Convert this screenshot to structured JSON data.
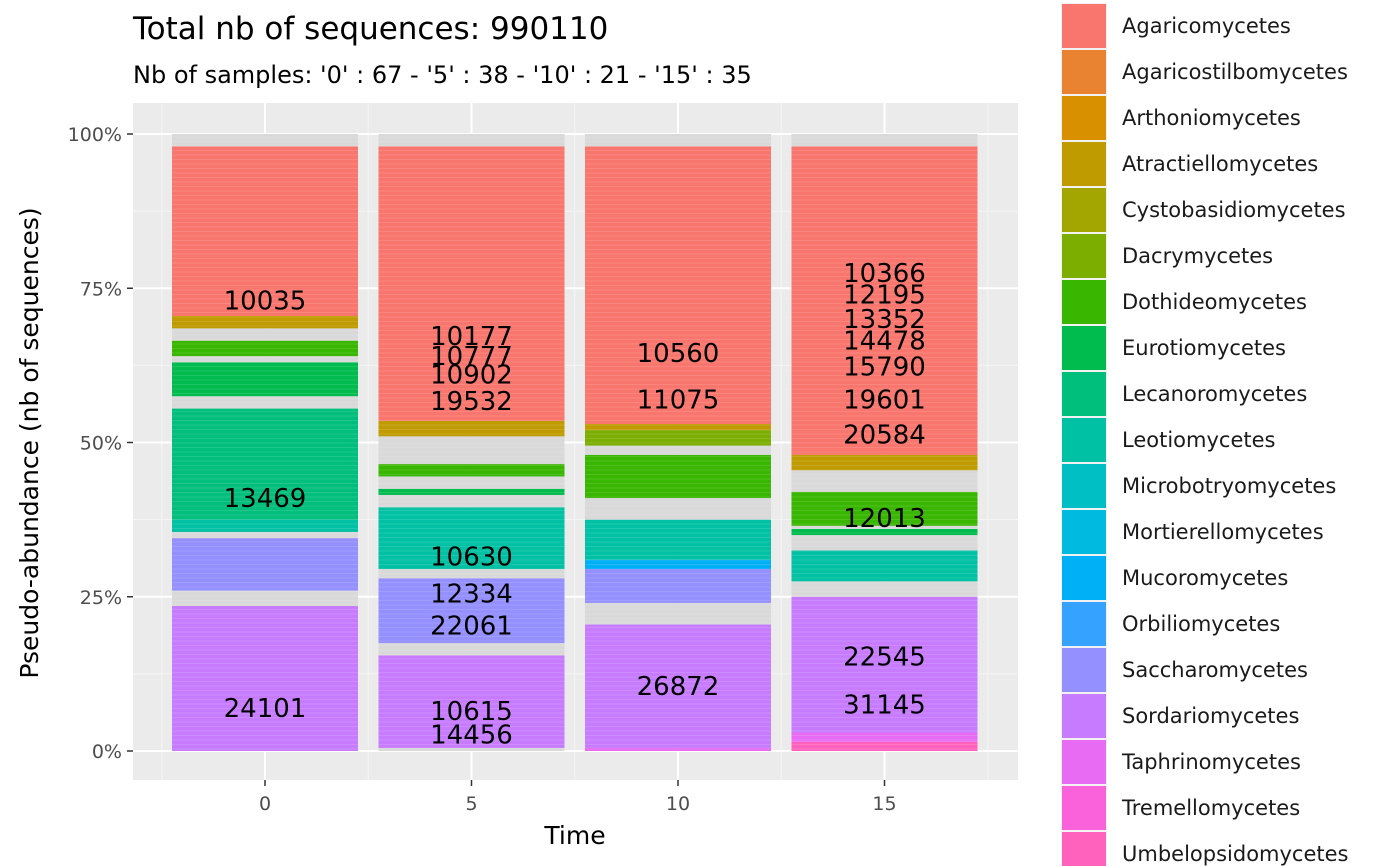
{
  "chart_data": {
    "type": "bar",
    "stacked": true,
    "title": "Total nb of sequences:  990110",
    "subtitle": "Nb of samples: '0' : 67 - '5' : 38 - '10' : 21 - '15' : 35",
    "xlabel": "Time",
    "ylabel": "Pseudo-abundance (nb of sequences)",
    "categories": [
      "0",
      "5",
      "10",
      "15"
    ],
    "ylim": [
      0,
      1
    ],
    "yticks": [
      "0%",
      "25%",
      "50%",
      "75%",
      "100%"
    ],
    "grid": true,
    "legend_position": "right",
    "colors": {
      "Agaricomycetes": "#F8766D",
      "Agaricostilbomycetes": "#EA8331",
      "Arthoniomycetes": "#D89000",
      "Atractiellomycetes": "#C09B00",
      "Cystobasidiomycetes": "#A3A500",
      "Dacrymycetes": "#7CAE00",
      "Dothideomycetes": "#39B600",
      "Eurotiomycetes": "#00BB4E",
      "Lecanoromycetes": "#00BF7D",
      "Leotiomycetes": "#00C1A3",
      "Microbotryomycetes": "#00BFC4",
      "Mortierellomycetes": "#00BAE0",
      "Mucoromycetes": "#00B0F6",
      "Orbiliomycetes": "#35A2FF",
      "Saccharomycetes": "#9590FF",
      "Sordariomycetes": "#C77CFF",
      "Taphrinomycetes": "#E76BF3",
      "Tremellomycetes": "#FA62DB",
      "Umbelopsidomycetes": "#FF62BC",
      "other": "#d9d9d9"
    },
    "legend": [
      "Agaricomycetes",
      "Agaricostilbomycetes",
      "Arthoniomycetes",
      "Atractiellomycetes",
      "Cystobasidiomycetes",
      "Dacrymycetes",
      "Dothideomycetes",
      "Eurotiomycetes",
      "Lecanoromycetes",
      "Leotiomycetes",
      "Microbotryomycetes",
      "Mortierellomycetes",
      "Mucoromycetes",
      "Orbiliomycetes",
      "Saccharomycetes",
      "Sordariomycetes",
      "Taphrinomycetes",
      "Tremellomycetes",
      "Umbelopsidomycetes"
    ],
    "stacks": [
      {
        "time": "0",
        "segments": [
          {
            "taxon": "Sordariomycetes",
            "from": 0.0,
            "to": 0.235
          },
          {
            "taxon": "other",
            "from": 0.235,
            "to": 0.26
          },
          {
            "taxon": "Saccharomycetes",
            "from": 0.26,
            "to": 0.345
          },
          {
            "taxon": "other",
            "from": 0.345,
            "to": 0.355
          },
          {
            "taxon": "Leotiomycetes",
            "from": 0.355,
            "to": 0.375
          },
          {
            "taxon": "Lecanoromycetes",
            "from": 0.375,
            "to": 0.555
          },
          {
            "taxon": "other",
            "from": 0.555,
            "to": 0.575
          },
          {
            "taxon": "Eurotiomycetes",
            "from": 0.575,
            "to": 0.63
          },
          {
            "taxon": "other",
            "from": 0.63,
            "to": 0.64
          },
          {
            "taxon": "Dothideomycetes",
            "from": 0.64,
            "to": 0.665
          },
          {
            "taxon": "other",
            "from": 0.665,
            "to": 0.685
          },
          {
            "taxon": "Atractiellomycetes",
            "from": 0.685,
            "to": 0.705
          },
          {
            "taxon": "Agaricomycetes",
            "from": 0.705,
            "to": 0.98
          },
          {
            "taxon": "other",
            "from": 0.98,
            "to": 1.0
          }
        ],
        "labels": [
          {
            "text": "24101",
            "y": 0.07
          },
          {
            "text": "13469",
            "y": 0.41
          },
          {
            "text": "10035",
            "y": 0.73
          }
        ]
      },
      {
        "time": "5",
        "segments": [
          {
            "taxon": "other",
            "from": 0.0,
            "to": 0.005
          },
          {
            "taxon": "Sordariomycetes",
            "from": 0.005,
            "to": 0.155
          },
          {
            "taxon": "other",
            "from": 0.155,
            "to": 0.175
          },
          {
            "taxon": "Saccharomycetes",
            "from": 0.175,
            "to": 0.28
          },
          {
            "taxon": "other",
            "from": 0.28,
            "to": 0.295
          },
          {
            "taxon": "Leotiomycetes",
            "from": 0.295,
            "to": 0.395
          },
          {
            "taxon": "other",
            "from": 0.395,
            "to": 0.415
          },
          {
            "taxon": "Eurotiomycetes",
            "from": 0.415,
            "to": 0.425
          },
          {
            "taxon": "other",
            "from": 0.425,
            "to": 0.445
          },
          {
            "taxon": "Dothideomycetes",
            "from": 0.445,
            "to": 0.465
          },
          {
            "taxon": "other",
            "from": 0.465,
            "to": 0.51
          },
          {
            "taxon": "Atractiellomycetes",
            "from": 0.51,
            "to": 0.535
          },
          {
            "taxon": "Agaricomycetes",
            "from": 0.535,
            "to": 0.98
          },
          {
            "taxon": "other",
            "from": 0.98,
            "to": 1.0
          }
        ],
        "labels": [
          {
            "text": "14456",
            "y": 0.027
          },
          {
            "text": "10615",
            "y": 0.065
          },
          {
            "text": "22061",
            "y": 0.203
          },
          {
            "text": "12334",
            "y": 0.255
          },
          {
            "text": "10630",
            "y": 0.315
          },
          {
            "text": "19532",
            "y": 0.567
          },
          {
            "text": "10902",
            "y": 0.61
          },
          {
            "text": "10777",
            "y": 0.64
          },
          {
            "text": "10177",
            "y": 0.673
          }
        ]
      },
      {
        "time": "10",
        "segments": [
          {
            "taxon": "Taphrinomycetes",
            "from": 0.0,
            "to": 0.005
          },
          {
            "taxon": "Sordariomycetes",
            "from": 0.005,
            "to": 0.205
          },
          {
            "taxon": "other",
            "from": 0.205,
            "to": 0.24
          },
          {
            "taxon": "Saccharomycetes",
            "from": 0.24,
            "to": 0.295
          },
          {
            "taxon": "Mucoromycetes",
            "from": 0.295,
            "to": 0.31
          },
          {
            "taxon": "Leotiomycetes",
            "from": 0.31,
            "to": 0.375
          },
          {
            "taxon": "other",
            "from": 0.375,
            "to": 0.41
          },
          {
            "taxon": "Dothideomycetes",
            "from": 0.41,
            "to": 0.48
          },
          {
            "taxon": "other",
            "from": 0.48,
            "to": 0.495
          },
          {
            "taxon": "Dacrymycetes",
            "from": 0.495,
            "to": 0.52
          },
          {
            "taxon": "Atractiellomycetes",
            "from": 0.52,
            "to": 0.53
          },
          {
            "taxon": "Agaricomycetes",
            "from": 0.53,
            "to": 0.98
          },
          {
            "taxon": "other",
            "from": 0.98,
            "to": 1.0
          }
        ],
        "labels": [
          {
            "text": "26872",
            "y": 0.105
          },
          {
            "text": "11075",
            "y": 0.57
          },
          {
            "text": "10560",
            "y": 0.645
          }
        ]
      },
      {
        "time": "15",
        "segments": [
          {
            "taxon": "Umbelopsidomycetes",
            "from": 0.0,
            "to": 0.015
          },
          {
            "taxon": "Taphrinomycetes",
            "from": 0.015,
            "to": 0.03
          },
          {
            "taxon": "Sordariomycetes",
            "from": 0.03,
            "to": 0.25
          },
          {
            "taxon": "other",
            "from": 0.25,
            "to": 0.275
          },
          {
            "taxon": "Leotiomycetes",
            "from": 0.275,
            "to": 0.325
          },
          {
            "taxon": "other",
            "from": 0.325,
            "to": 0.35
          },
          {
            "taxon": "Eurotiomycetes",
            "from": 0.35,
            "to": 0.36
          },
          {
            "taxon": "other",
            "from": 0.36,
            "to": 0.365
          },
          {
            "taxon": "Dothideomycetes",
            "from": 0.365,
            "to": 0.42
          },
          {
            "taxon": "other",
            "from": 0.42,
            "to": 0.455
          },
          {
            "taxon": "Atractiellomycetes",
            "from": 0.455,
            "to": 0.48
          },
          {
            "taxon": "Agaricomycetes",
            "from": 0.48,
            "to": 0.98
          },
          {
            "taxon": "other",
            "from": 0.98,
            "to": 1.0
          }
        ],
        "labels": [
          {
            "text": "31145",
            "y": 0.075
          },
          {
            "text": "22545",
            "y": 0.153
          },
          {
            "text": "12013",
            "y": 0.378
          },
          {
            "text": "20584",
            "y": 0.513
          },
          {
            "text": "19601",
            "y": 0.57
          },
          {
            "text": "15790",
            "y": 0.623
          },
          {
            "text": "14478",
            "y": 0.665
          },
          {
            "text": "13352",
            "y": 0.7
          },
          {
            "text": "12195",
            "y": 0.74
          },
          {
            "text": "10366",
            "y": 0.775
          }
        ]
      }
    ]
  }
}
